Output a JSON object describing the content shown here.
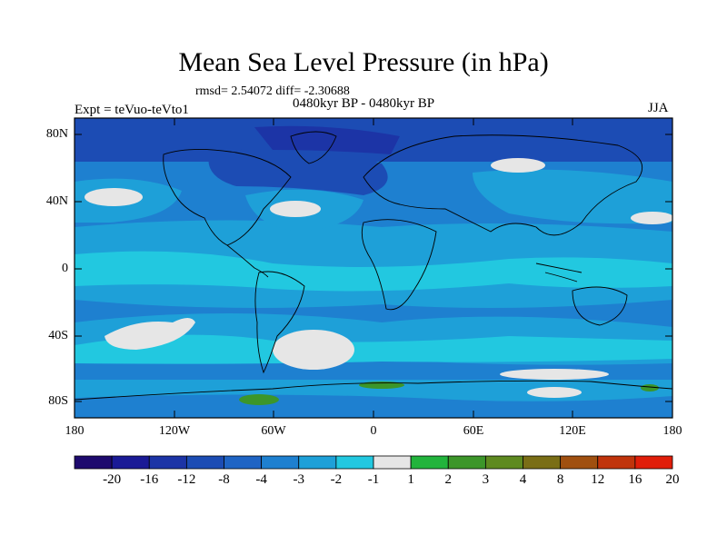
{
  "header": {
    "title": "Mean Sea Level Pressure (in hPa)",
    "stats": "rmsd= 2.54072 diff= -2.30688",
    "period": "0480kyr BP - 0480kyr BP",
    "expt": "Expt = teVuo-teVto1",
    "season": "JJA"
  },
  "axes": {
    "lat_labels": [
      "80N",
      "40N",
      "0",
      "40S",
      "80S"
    ],
    "lon_labels": [
      "180",
      "120W",
      "60W",
      "0",
      "60E",
      "120E",
      "180"
    ]
  },
  "colorbar": {
    "labels": [
      "-20",
      "-16",
      "-12",
      "-8",
      "-4",
      "-3",
      "-2",
      "-1",
      "1",
      "2",
      "3",
      "4",
      "8",
      "12",
      "16",
      "20"
    ],
    "colors": [
      "#1e0a6e",
      "#1a1a96",
      "#1c34a6",
      "#1c4cb4",
      "#1f64c4",
      "#1e80d0",
      "#1ea0d8",
      "#22c8e0",
      "#e6e6e6",
      "#22b43c",
      "#3c962a",
      "#5e8a20",
      "#7a6e16",
      "#a05010",
      "#c0340c",
      "#e01e0a"
    ]
  },
  "field_colors": {
    "deep": "#1c4cb4",
    "mid": "#1f64c4",
    "light": "#1ea0d8",
    "pale": "#22c8e0",
    "near_zero": "#e6e6e6",
    "positive": "#3c962a"
  }
}
